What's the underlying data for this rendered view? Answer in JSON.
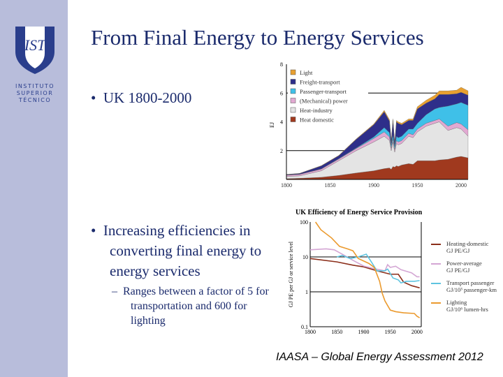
{
  "sidebar": {
    "logo_mark": "IST",
    "logo_lines": [
      "INSTITUTO",
      "SUPERIOR",
      "TÉCNICO"
    ]
  },
  "slide": {
    "title": "From Final Energy to Energy Services",
    "bullet1": "UK 1800-2000",
    "bullet2": "Increasing efficiencies in converting final energy to energy services",
    "sub_bullet": "Ranges between a factor of 5 for transportation and 600 for lighting",
    "footer": "IAASA – Global Energy Assessment 2012"
  },
  "chart_data": [
    {
      "type": "area",
      "stacked": true,
      "ylabel": "EJ",
      "ylim": [
        0,
        8
      ],
      "xlim": [
        1800,
        2008
      ],
      "yticks": [
        "2",
        "4",
        "6",
        "8"
      ],
      "xticks": [
        "1800",
        "1850",
        "1900",
        "1950",
        "2000"
      ],
      "legend_position": "top-left",
      "x": [
        1800,
        1815,
        1840,
        1860,
        1880,
        1900,
        1912,
        1918,
        1920,
        1922,
        1924,
        1926,
        1928,
        1932,
        1940,
        1945,
        1950,
        1960,
        1970,
        1975,
        1985,
        1995,
        2000,
        2008
      ],
      "series": [
        {
          "name": "Heat domestic",
          "color": "#a0391e",
          "values": [
            0.05,
            0.08,
            0.15,
            0.28,
            0.45,
            0.6,
            0.75,
            0.8,
            0.7,
            0.9,
            0.85,
            0.95,
            0.9,
            1.0,
            1.1,
            1.05,
            1.3,
            1.3,
            1.3,
            1.35,
            1.4,
            1.55,
            1.6,
            1.5
          ]
        },
        {
          "name": "Heat-industry",
          "color": "#e4e4e4",
          "values": [
            0.15,
            0.17,
            0.45,
            1.02,
            1.55,
            2.0,
            2.25,
            1.9,
            1.3,
            1.7,
            1.05,
            1.55,
            1.5,
            1.5,
            1.9,
            1.85,
            2.0,
            2.4,
            2.6,
            2.65,
            2.0,
            2.05,
            1.9,
            1.5
          ]
        },
        {
          "name": "(Mechanical) power",
          "color": "#e2a9d2",
          "values": [
            0.1,
            0.1,
            0.12,
            0.12,
            0.15,
            0.25,
            0.3,
            0.25,
            0.2,
            0.2,
            0.2,
            0.2,
            0.2,
            0.2,
            0.2,
            0.2,
            0.2,
            0.2,
            0.2,
            0.2,
            0.3,
            0.35,
            0.35,
            0.45
          ]
        },
        {
          "name": "Passenger-transport",
          "color": "#3fc0e8",
          "values": [
            0.01,
            0.01,
            0.02,
            0.03,
            0.04,
            0.1,
            0.3,
            0.3,
            0.2,
            0.3,
            0.2,
            0.3,
            0.3,
            0.3,
            0.3,
            0.4,
            0.4,
            0.6,
            0.8,
            0.8,
            1.4,
            1.3,
            1.5,
            1.7
          ]
        },
        {
          "name": "Freight-transport",
          "color": "#2e2e8a",
          "values": [
            0.03,
            0.05,
            0.2,
            0.2,
            0.6,
            0.85,
            1.1,
            0.8,
            0.2,
            1.0,
            0.2,
            1.0,
            1.0,
            0.8,
            0.6,
            0.6,
            1.0,
            0.8,
            0.7,
            0.9,
            0.8,
            0.7,
            0.7,
            0.7
          ]
        },
        {
          "name": "Light",
          "color": "#e8a030",
          "values": [
            0.01,
            0.01,
            0.02,
            0.02,
            0.03,
            0.05,
            0.1,
            0.1,
            0.05,
            0.1,
            0.05,
            0.1,
            0.1,
            0.1,
            0.1,
            0.1,
            0.15,
            0.2,
            0.25,
            0.25,
            0.25,
            0.25,
            0.35,
            0.3
          ]
        }
      ]
    },
    {
      "type": "line",
      "title": "UK Efficiency of Energy Service Provision",
      "ylabel": "GJ PE per GJ or service level",
      "yscale": "log",
      "ylim": [
        0.1,
        100
      ],
      "xlim": [
        1800,
        2008
      ],
      "yticks": [
        "0.1",
        "1",
        "10",
        "100"
      ],
      "xticks": [
        "1800",
        "1850",
        "1900",
        "1950",
        "2000"
      ],
      "legend_position": "right",
      "series": [
        {
          "name": "Heating-domestic",
          "unit": "GJ PE/GJ",
          "color": "#8b2e1a",
          "x": [
            1800,
            1850,
            1880,
            1900,
            1925,
            1950,
            1965,
            1975,
            1990,
            2005
          ],
          "y": [
            9,
            7.2,
            5.8,
            5.2,
            4,
            3.2,
            3.2,
            1.9,
            1.5,
            1.3
          ]
        },
        {
          "name": "Power-average",
          "unit": "GJ PE/GJ",
          "color": "#d4a6d4",
          "x": [
            1800,
            1830,
            1845,
            1860,
            1880,
            1900,
            1920,
            1940,
            1945,
            1950,
            1960,
            1970,
            1990,
            2000,
            2005
          ],
          "y": [
            16,
            17,
            16,
            12,
            8,
            5.5,
            4.6,
            4.0,
            6,
            5,
            5.4,
            4.3,
            3.5,
            2.7,
            2.7
          ]
        },
        {
          "name": "Transport passenger",
          "unit": "GJ/10³ passenger-km",
          "color": "#5ec4e0",
          "x": [
            1850,
            1860,
            1875,
            1890,
            1905,
            1915,
            1925,
            1940,
            1945,
            1955,
            1965,
            1970,
            1980,
            1995,
            2005
          ],
          "y": [
            10,
            11,
            9,
            10,
            12,
            7,
            4,
            4,
            4.5,
            2.5,
            2.2,
            1.8,
            2.0,
            2.0,
            2.1
          ]
        },
        {
          "name": "Lighting",
          "unit": "GJ/10⁶ lumen-hrs",
          "color": "#eb9a2e",
          "x": [
            1810,
            1820,
            1840,
            1855,
            1870,
            1880,
            1890,
            1910,
            1920,
            1930,
            1935,
            1940,
            1950,
            1960,
            1975,
            1995,
            2000,
            2005
          ],
          "y": [
            100,
            60,
            35,
            20,
            17,
            15,
            9,
            6.5,
            5,
            2,
            0.9,
            0.55,
            0.3,
            0.27,
            0.25,
            0.24,
            0.2,
            0.18
          ]
        }
      ]
    }
  ]
}
